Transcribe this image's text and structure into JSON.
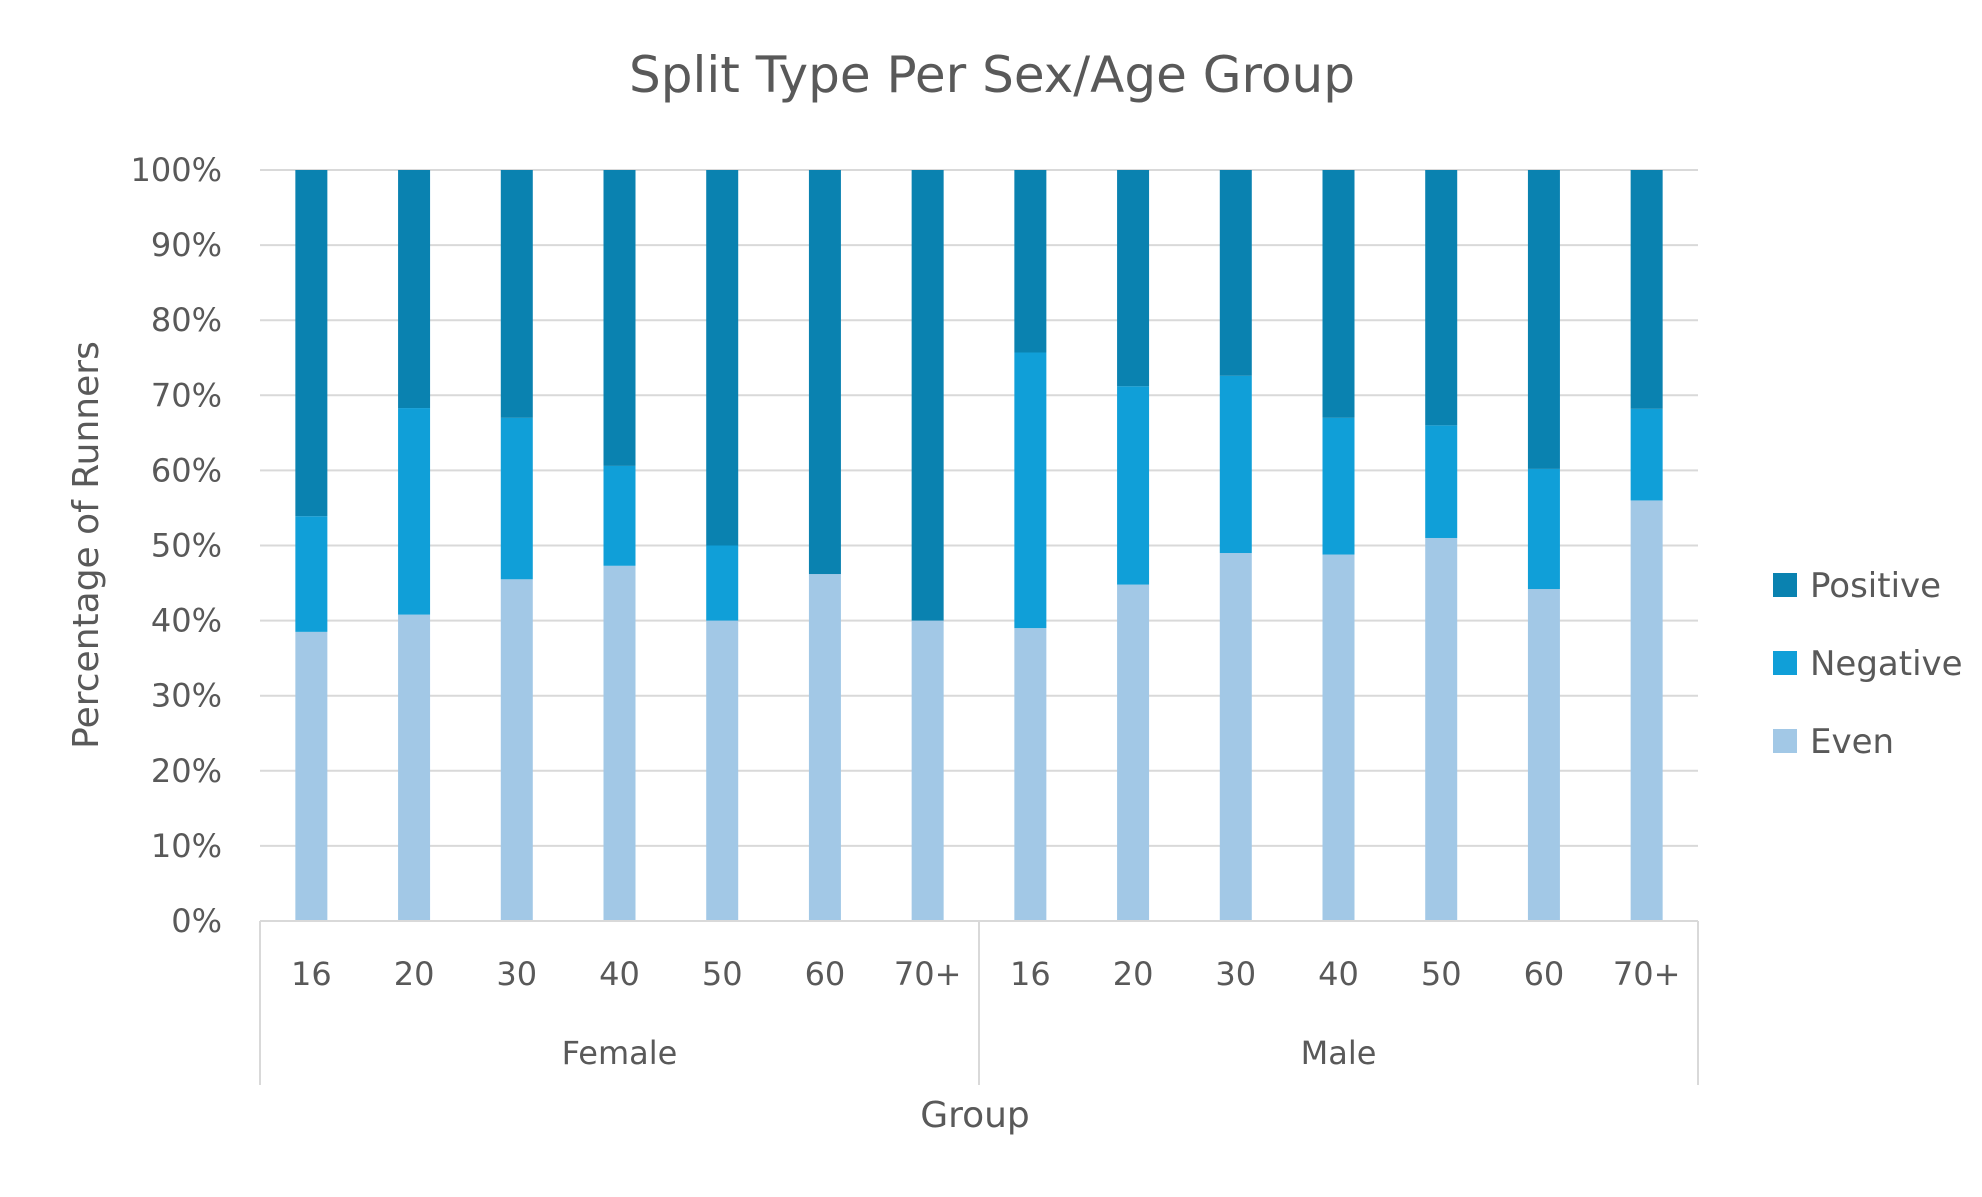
{
  "chart_data": {
    "type": "bar",
    "stacked": true,
    "title": "Split Type Per Sex/Age Group",
    "xlabel": "Group",
    "ylabel": "Percentage of Runners",
    "ylim": [
      0,
      100
    ],
    "y_ticks": [
      "0%",
      "10%",
      "20%",
      "30%",
      "40%",
      "50%",
      "60%",
      "70%",
      "80%",
      "90%",
      "100%"
    ],
    "groups": [
      {
        "name": "Female",
        "categories": [
          "16",
          "20",
          "30",
          "40",
          "50",
          "60",
          "70+"
        ]
      },
      {
        "name": "Male",
        "categories": [
          "16",
          "20",
          "30",
          "40",
          "50",
          "60",
          "70+"
        ]
      }
    ],
    "series": [
      {
        "name": "Even",
        "color": "#a2c8e6",
        "values": [
          38.5,
          40.8,
          45.5,
          47.3,
          40.0,
          46.2,
          40.0,
          39.0,
          44.8,
          49.0,
          48.8,
          51.0,
          44.2,
          56.0
        ]
      },
      {
        "name": "Negative",
        "color": "#109fd8",
        "values": [
          15.4,
          27.5,
          21.5,
          13.3,
          10.0,
          0.0,
          0.0,
          36.7,
          26.4,
          23.6,
          18.2,
          15.0,
          16.0,
          12.2
        ]
      },
      {
        "name": "Positive",
        "color": "#0a82b0",
        "values": [
          46.1,
          31.7,
          33.0,
          39.4,
          50.0,
          53.8,
          60.0,
          24.3,
          28.8,
          27.4,
          33.0,
          34.0,
          39.8,
          31.8
        ]
      }
    ],
    "legend_order": [
      "Positive",
      "Negative",
      "Even"
    ],
    "legend_position": "right",
    "grid": true
  }
}
